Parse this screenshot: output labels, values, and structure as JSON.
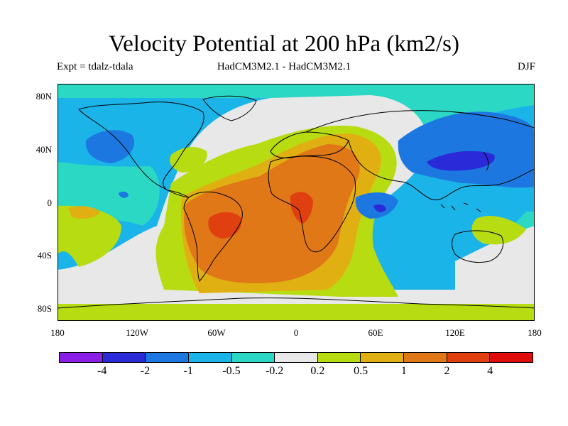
{
  "header": {
    "title": "Velocity Potential at 200 hPa (km2/s)",
    "expt": "Expt = tdalz-tdala",
    "models": "HadCM3M2.1 - HadCM3M2.1",
    "season": "DJF"
  },
  "axes": {
    "y_ticks": [
      "80N",
      "40N",
      "0",
      "40S",
      "80S"
    ],
    "x_ticks": [
      "180",
      "120W",
      "60W",
      "0",
      "60E",
      "120E",
      "180"
    ]
  },
  "colorbar": {
    "colors": [
      "#8a1ee6",
      "#2a2ad8",
      "#1c78e0",
      "#1bb4e8",
      "#2ad8c4",
      "#e8e8e8",
      "#b8dc12",
      "#e0b012",
      "#e07818",
      "#e04010",
      "#e00c0c"
    ],
    "labels": [
      "-4",
      "-2",
      "-1",
      "-0.5",
      "-0.2",
      "0.2",
      "0.5",
      "1",
      "2",
      "4"
    ]
  },
  "colors": {
    "ocean_bg": "#1bb4e8",
    "neutral": "#e8e8e8"
  }
}
